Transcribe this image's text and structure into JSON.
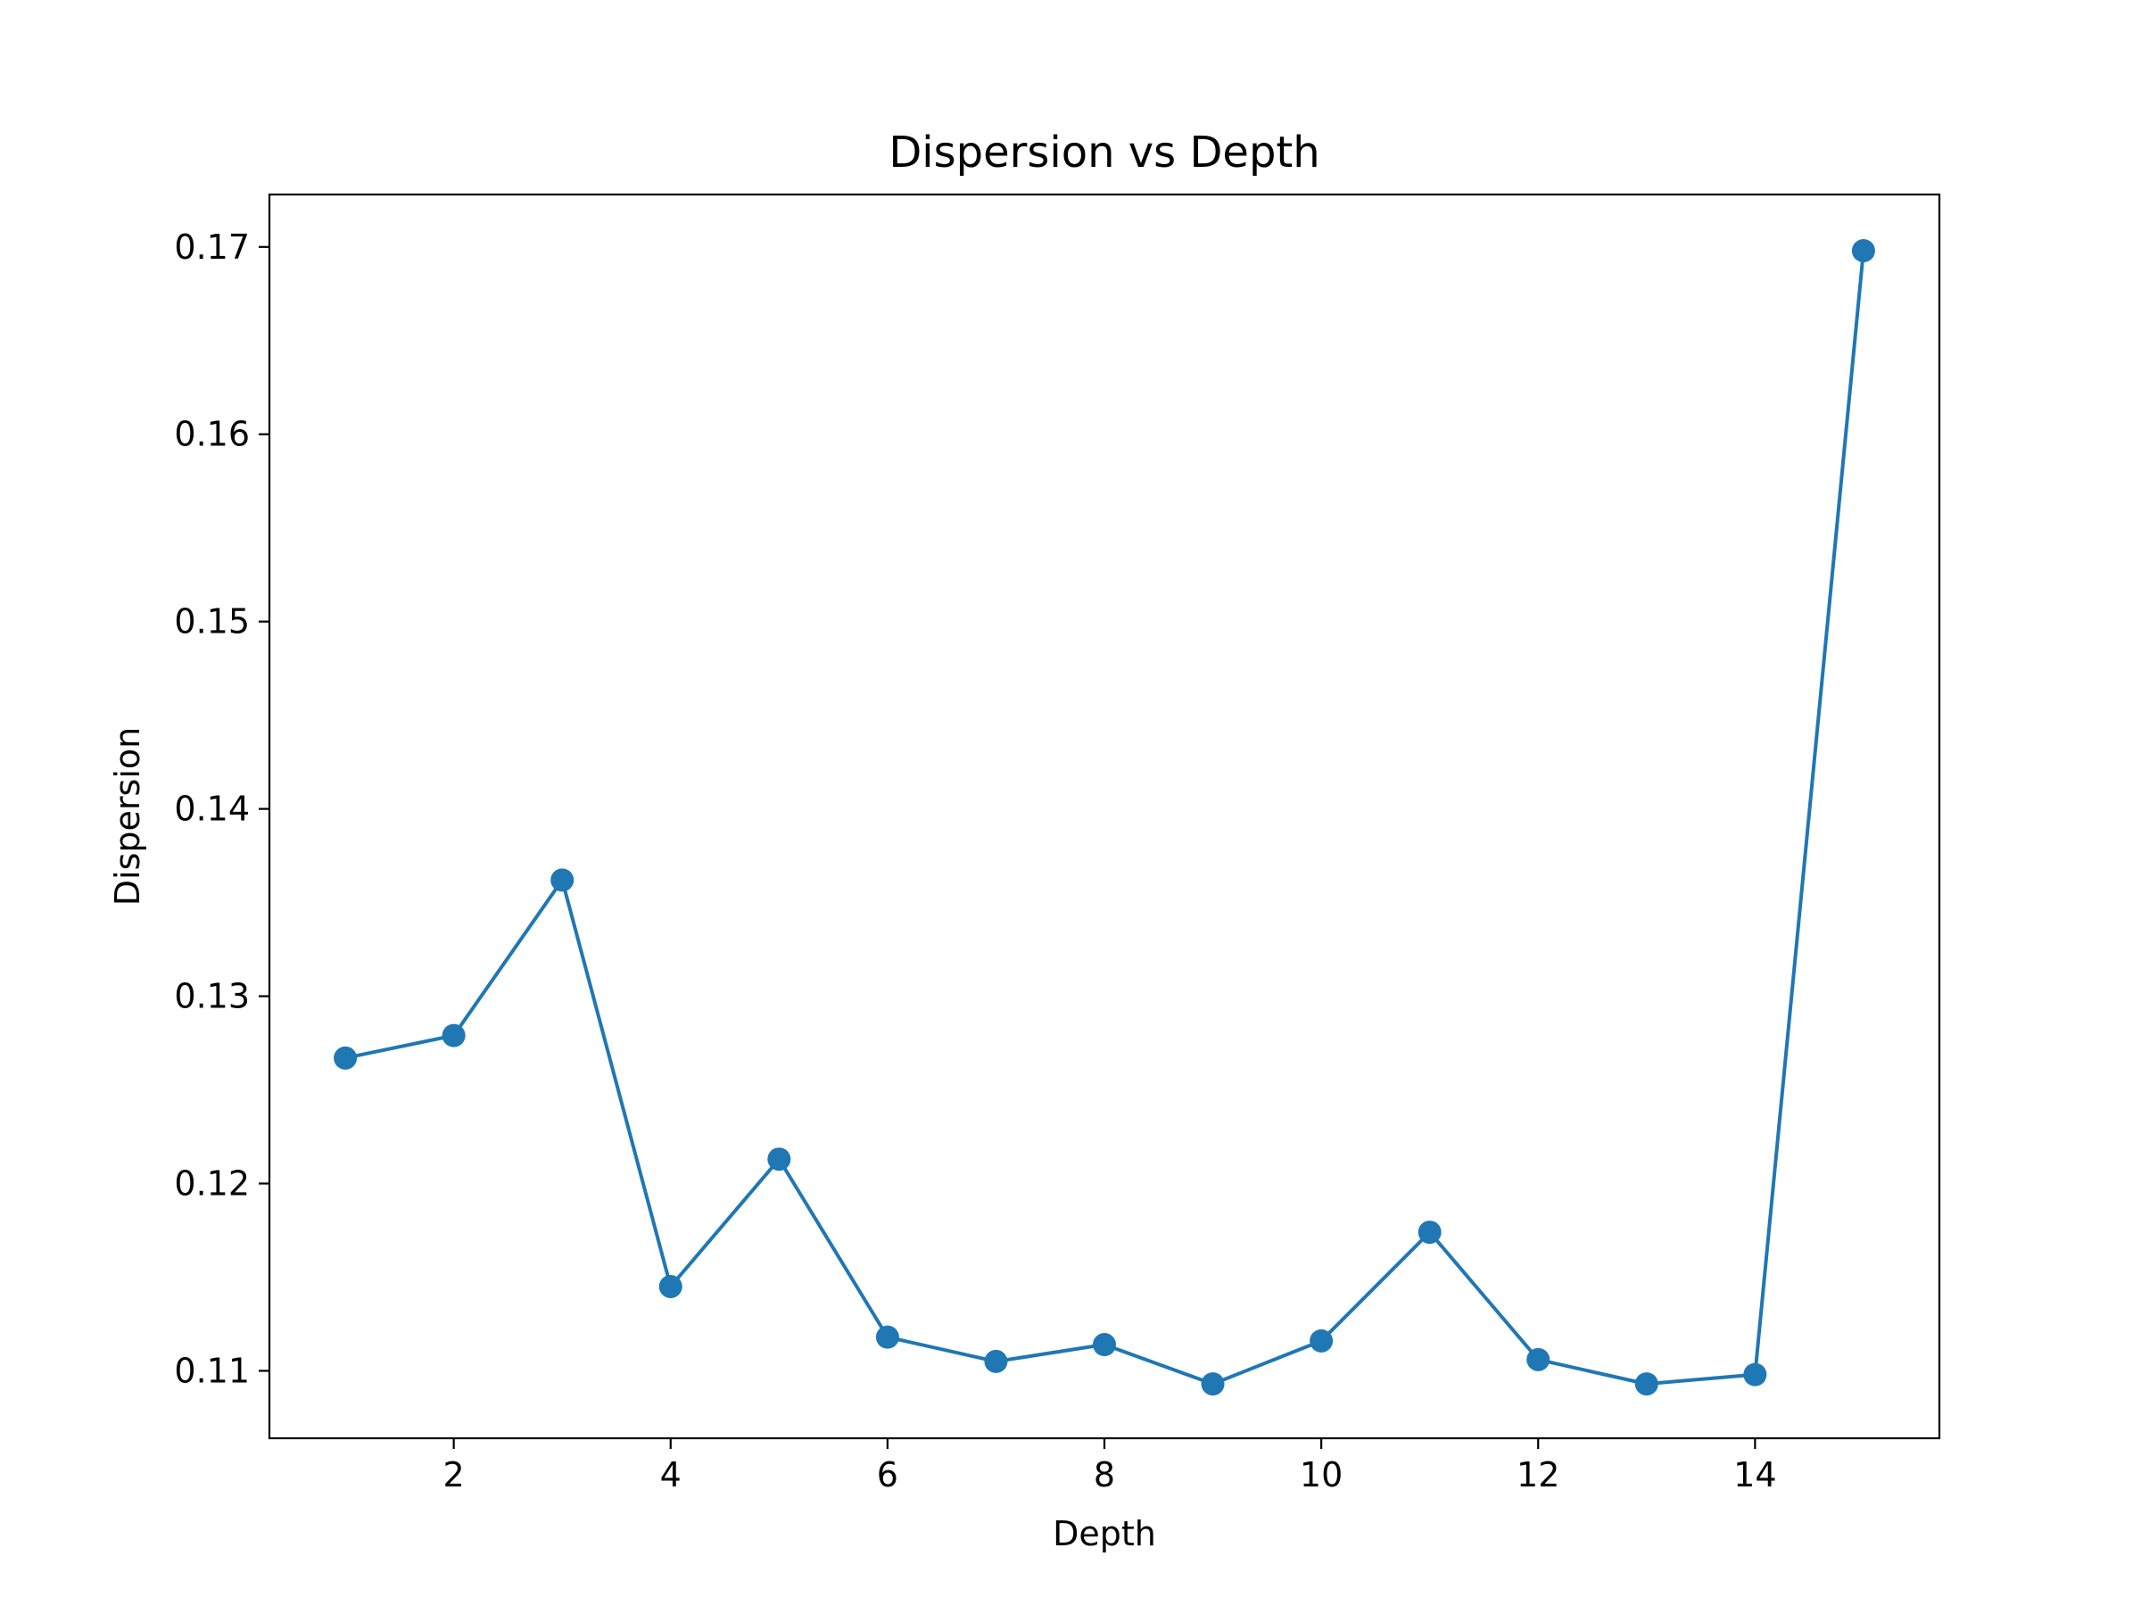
{
  "chart_data": {
    "type": "line",
    "title": "Dispersion vs Depth",
    "xlabel": "Depth",
    "ylabel": "Dispersion",
    "xlim": [
      0.3,
      15.7
    ],
    "ylim": [
      0.1064,
      0.1728
    ],
    "x_ticks": [
      2,
      4,
      6,
      8,
      10,
      12,
      14
    ],
    "y_ticks": [
      0.11,
      0.12,
      0.13,
      0.14,
      0.15,
      0.16,
      0.17
    ],
    "x_tick_labels": [
      "2",
      "4",
      "6",
      "8",
      "10",
      "12",
      "14"
    ],
    "y_tick_labels": [
      "0.11",
      "0.12",
      "0.13",
      "0.14",
      "0.15",
      "0.16",
      "0.17"
    ],
    "grid": false,
    "series": [
      {
        "color": "#1f77b4",
        "marker": "circle",
        "x": [
          1,
          2,
          3,
          4,
          5,
          6,
          7,
          8,
          9,
          10,
          11,
          12,
          13,
          14,
          15
        ],
        "y": [
          0.1267,
          0.1279,
          0.1362,
          0.1145,
          0.1213,
          0.1118,
          0.1105,
          0.1114,
          0.1093,
          0.1116,
          0.1174,
          0.1106,
          0.1093,
          0.1098,
          0.1698
        ]
      }
    ]
  }
}
